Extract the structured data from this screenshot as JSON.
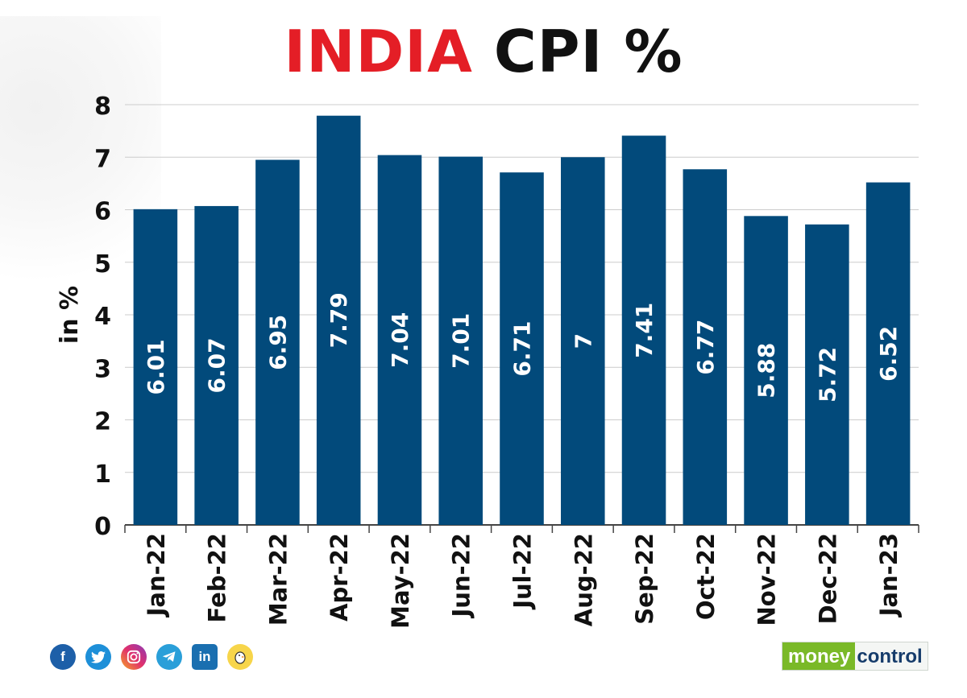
{
  "title": {
    "part1": "INDIA",
    "part2": "CPI %"
  },
  "colors": {
    "bar": "#024a7b",
    "title_accent": "#e41e26",
    "title_main": "#111111",
    "grid": "#cccccc",
    "axis": "#444444"
  },
  "chart_data": {
    "type": "bar",
    "title": "INDIA CPI %",
    "xlabel": "",
    "ylabel": "in %",
    "categories": [
      "Jan-22",
      "Feb-22",
      "Mar-22",
      "Apr-22",
      "May-22",
      "Jun-22",
      "Jul-22",
      "Aug-22",
      "Sep-22",
      "Oct-22",
      "Nov-22",
      "Dec-22",
      "Jan-23"
    ],
    "values": [
      6.01,
      6.07,
      6.95,
      7.79,
      7.04,
      7.01,
      6.71,
      7,
      7.41,
      6.77,
      5.88,
      5.72,
      6.52
    ],
    "data_labels": [
      "6.01",
      "6.07",
      "6.95",
      "7.79",
      "7.04",
      "7.01",
      "6.71",
      "7",
      "7.41",
      "6.77",
      "5.88",
      "5.72",
      "6.52"
    ],
    "yticks": [
      0,
      1,
      2,
      3,
      4,
      5,
      6,
      7,
      8
    ],
    "ylim": [
      0,
      8
    ],
    "grid": true
  },
  "footer": {
    "social_icons": [
      "facebook-icon",
      "twitter-icon",
      "instagram-icon",
      "telegram-icon",
      "linkedin-icon",
      "koo-icon"
    ],
    "brand": {
      "part1": "money",
      "part2": "control"
    }
  }
}
